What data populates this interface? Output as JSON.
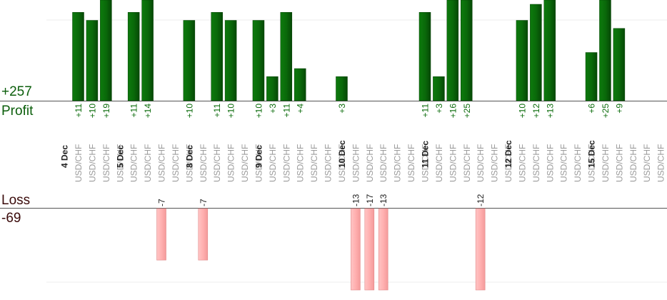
{
  "summary": {
    "profit_total": "+257",
    "profit_label": "Profit",
    "loss_label": "Loss",
    "loss_total": "-69"
  },
  "colors": {
    "profit_bar": "#0a6a0a",
    "profit_text": "#0b6b0b",
    "loss_bar": "#ffb0b0",
    "loss_text": "#222222"
  },
  "chart_data": {
    "type": "bar",
    "categories": [
      "USD/CHF",
      "USD/CHF",
      "USD/CHF",
      "USD/CHF",
      "USD/CHF",
      "USD/CHF",
      "USD/CHF",
      "USD/CHF",
      "USD/CHF",
      "USD/CHF",
      "USD/CHF",
      "USD/CHF",
      "USD/CHF",
      "USD/CHF",
      "USD/CHF",
      "USD/CHF",
      "USD/CHF",
      "USD/CHF",
      "USD/CHF",
      "USD/CHF",
      "USD/CHF",
      "USD/CHF",
      "USD/CHF",
      "USD/CHF",
      "USD/CHF",
      "USD/CHF",
      "USD/CHF",
      "USD/CHF",
      "USD/CHF",
      "USD/CHF",
      "USD/CHF",
      "USD/CHF",
      "USD/CHF",
      "USD/CHF",
      "USD/CHF",
      "USD/CHF",
      "USD/CHF",
      "USD/CHF",
      "USD/CHF",
      "USD/CHF",
      "USD/CHF",
      "USD/CHF",
      "USD/CHF"
    ],
    "values": [
      11,
      10,
      19,
      null,
      11,
      14,
      -7,
      null,
      10,
      -7,
      11,
      10,
      null,
      10,
      3,
      11,
      4,
      null,
      null,
      3,
      -13,
      -17,
      -13,
      null,
      null,
      11,
      3,
      16,
      25,
      -12,
      null,
      null,
      10,
      12,
      13,
      null,
      null,
      6,
      25,
      9,
      null,
      null,
      null
    ],
    "value_labels": [
      "+11",
      "+10",
      "+19",
      "",
      "+11",
      "+14",
      "-7",
      "",
      "+10",
      "-7",
      "+11",
      "+10",
      "",
      "+10",
      "+3",
      "+11",
      "+4",
      "",
      "",
      "+3",
      "-13",
      "-17",
      "-13",
      "",
      "",
      "+11",
      "+3",
      "+16",
      "+25",
      "-12",
      "",
      "",
      "+10",
      "+12",
      "+13",
      "",
      "",
      "+6",
      "+25",
      "+9",
      "",
      "",
      ""
    ],
    "date_labels": [
      {
        "label": "4 Dec",
        "slot": 0
      },
      {
        "label": "5 Dec",
        "slot": 4
      },
      {
        "label": "8 Dec",
        "slot": 9
      },
      {
        "label": "9 Dec",
        "slot": 14
      },
      {
        "label": "10 Dec",
        "slot": 20
      },
      {
        "label": "11 Dec",
        "slot": 26
      },
      {
        "label": "12 Dec",
        "slot": 32
      },
      {
        "label": "15 Dec",
        "slot": 38
      }
    ]
  }
}
